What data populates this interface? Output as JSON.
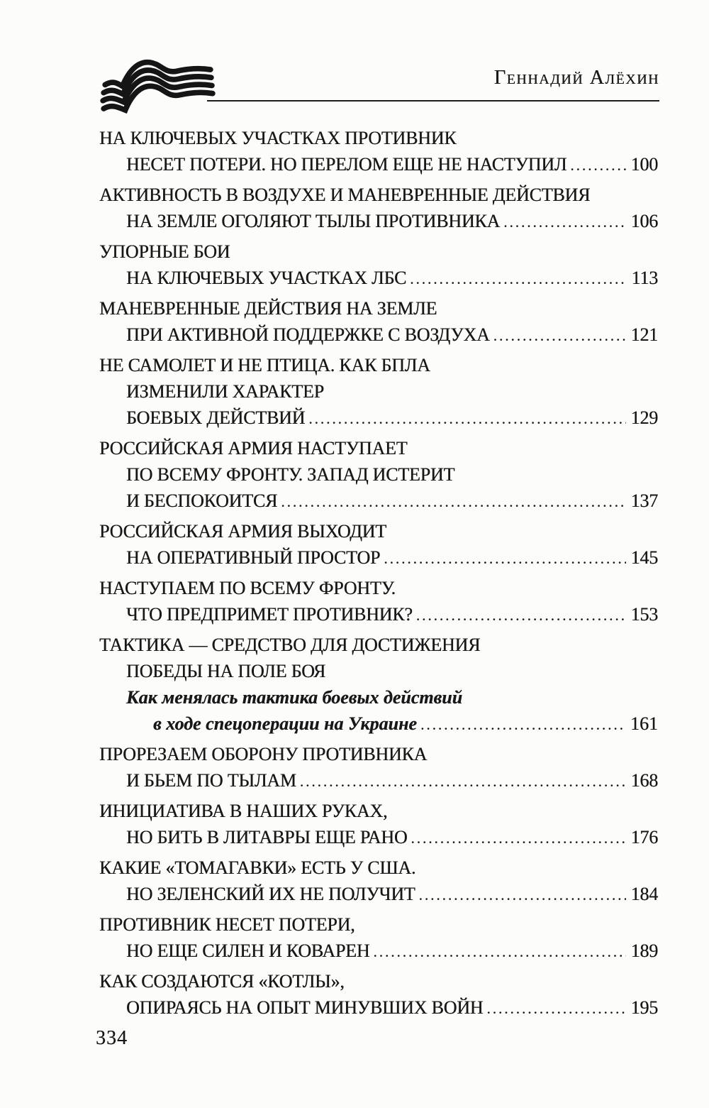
{
  "header": {
    "author": "Геннадий Алёхин",
    "logo_icon": "striped-ribbon-flag"
  },
  "toc": {
    "entries": [
      {
        "lines": [
          {
            "text": "НА КЛЮЧЕВЫХ УЧАСТКАХ ПРОТИВНИК",
            "indent": 0
          },
          {
            "text": "НЕСЕТ ПОТЕРИ. НО ПЕРЕЛОМ ЕЩЕ НЕ НАСТУПИЛ",
            "indent": 1,
            "page": "100"
          }
        ]
      },
      {
        "lines": [
          {
            "text": "АКТИВНОСТЬ В ВОЗДУХЕ И МАНЕВРЕННЫЕ ДЕЙСТВИЯ",
            "indent": 0
          },
          {
            "text": "НА ЗЕМЛЕ ОГОЛЯЮТ ТЫЛЫ ПРОТИВНИКА",
            "indent": 1,
            "page": "106"
          }
        ]
      },
      {
        "lines": [
          {
            "text": "УПОРНЫЕ БОИ",
            "indent": 0
          },
          {
            "text": "НА КЛЮЧЕВЫХ УЧАСТКАХ ЛБС",
            "indent": 1,
            "page": "113"
          }
        ]
      },
      {
        "lines": [
          {
            "text": "МАНЕВРЕННЫЕ ДЕЙСТВИЯ НА ЗЕМЛЕ",
            "indent": 0
          },
          {
            "text": "ПРИ АКТИВНОЙ ПОДДЕРЖКЕ С ВОЗДУХА",
            "indent": 1,
            "page": "121"
          }
        ]
      },
      {
        "lines": [
          {
            "text": "НЕ САМОЛЕТ И НЕ ПТИЦА. КАК БПЛА",
            "indent": 0
          },
          {
            "text": "ИЗМЕНИЛИ ХАРАКТЕР",
            "indent": 1
          },
          {
            "text": "БОЕВЫХ ДЕЙСТВИЙ",
            "indent": 1,
            "page": "129"
          }
        ]
      },
      {
        "lines": [
          {
            "text": "РОССИЙСКАЯ АРМИЯ НАСТУПАЕТ",
            "indent": 0
          },
          {
            "text": "ПО ВСЕМУ ФРОНТУ. ЗАПАД ИСТЕРИТ",
            "indent": 1
          },
          {
            "text": "И БЕСПОКОИТСЯ",
            "indent": 1,
            "page": "137"
          }
        ]
      },
      {
        "lines": [
          {
            "text": "РОССИЙСКАЯ АРМИЯ ВЫХОДИТ",
            "indent": 0
          },
          {
            "text": "НА ОПЕРАТИВНЫЙ ПРОСТОР",
            "indent": 1,
            "page": "145"
          }
        ]
      },
      {
        "lines": [
          {
            "text": "НАСТУПАЕМ ПО ВСЕМУ ФРОНТУ.",
            "indent": 0
          },
          {
            "text": "ЧТО ПРЕДПРИМЕТ ПРОТИВНИК?",
            "indent": 1,
            "page": "153"
          }
        ]
      },
      {
        "lines": [
          {
            "text": "ТАКТИКА — СРЕДСТВО ДЛЯ ДОСТИЖЕНИЯ",
            "indent": 0
          },
          {
            "text": "ПОБЕДЫ НА ПОЛЕ БОЯ",
            "indent": 1
          },
          {
            "text": "Как менялась тактика боевых действий",
            "indent": 1,
            "style": "italic"
          },
          {
            "text": "в ходе спецоперации на Украине",
            "indent": 2,
            "style": "italic",
            "page": "161"
          }
        ]
      },
      {
        "lines": [
          {
            "text": "ПРОРЕЗАЕМ ОБОРОНУ ПРОТИВНИКА",
            "indent": 0
          },
          {
            "text": "И БЬЕМ ПО ТЫЛАМ",
            "indent": 1,
            "page": "168"
          }
        ]
      },
      {
        "lines": [
          {
            "text": "ИНИЦИАТИВА В НАШИХ РУКАХ,",
            "indent": 0
          },
          {
            "text": "НО БИТЬ В ЛИТАВРЫ ЕЩЕ РАНО",
            "indent": 1,
            "page": "176"
          }
        ]
      },
      {
        "lines": [
          {
            "text": "КАКИЕ «ТОМАГАВКИ» ЕСТЬ У США.",
            "indent": 0
          },
          {
            "text": "НО ЗЕЛЕНСКИЙ ИХ НЕ ПОЛУЧИТ",
            "indent": 1,
            "page": "184"
          }
        ]
      },
      {
        "lines": [
          {
            "text": "ПРОТИВНИК НЕСЕТ ПОТЕРИ,",
            "indent": 0
          },
          {
            "text": "НО ЕЩЕ СИЛЕН И КОВАРЕН",
            "indent": 1,
            "page": "189"
          }
        ]
      },
      {
        "lines": [
          {
            "text": "КАК СОЗДАЮТСЯ «КОТЛЫ»,",
            "indent": 0
          },
          {
            "text": "ОПИРАЯСЬ НА ОПЫТ МИНУВШИХ ВОЙН",
            "indent": 1,
            "page": "195"
          }
        ]
      }
    ]
  },
  "footer": {
    "page_number": "334"
  },
  "colors": {
    "ink": "#181818",
    "paper": "#fcfcfa"
  }
}
